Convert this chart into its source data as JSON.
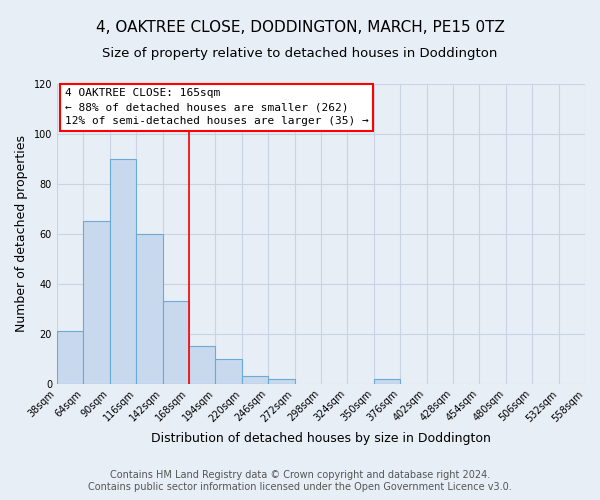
{
  "title": "4, OAKTREE CLOSE, DODDINGTON, MARCH, PE15 0TZ",
  "subtitle": "Size of property relative to detached houses in Doddington",
  "xlabel": "Distribution of detached houses by size in Doddington",
  "ylabel": "Number of detached properties",
  "bar_color": "#c8d9ed",
  "bar_edge_color": "#6aaad4",
  "bin_edges": [
    38,
    64,
    90,
    116,
    142,
    168,
    194,
    220,
    246,
    272,
    298,
    324,
    350,
    376,
    402,
    428,
    454,
    480,
    506,
    532,
    558
  ],
  "bar_heights": [
    21,
    65,
    90,
    60,
    33,
    15,
    10,
    3,
    2,
    0,
    0,
    0,
    2,
    0,
    0,
    0,
    0,
    0,
    0,
    0
  ],
  "red_line_x": 168,
  "annotation_title": "4 OAKTREE CLOSE: 165sqm",
  "annotation_line1": "← 88% of detached houses are smaller (262)",
  "annotation_line2": "12% of semi-detached houses are larger (35) →",
  "ylim": [
    0,
    120
  ],
  "yticks": [
    0,
    20,
    40,
    60,
    80,
    100,
    120
  ],
  "footer_line1": "Contains HM Land Registry data © Crown copyright and database right 2024.",
  "footer_line2": "Contains public sector information licensed under the Open Government Licence v3.0.",
  "background_color": "#e8eef6",
  "grid_color": "#c8d4e4",
  "title_fontsize": 11,
  "subtitle_fontsize": 9.5,
  "axis_label_fontsize": 9,
  "tick_fontsize": 7,
  "annotation_fontsize": 8,
  "footer_fontsize": 7
}
